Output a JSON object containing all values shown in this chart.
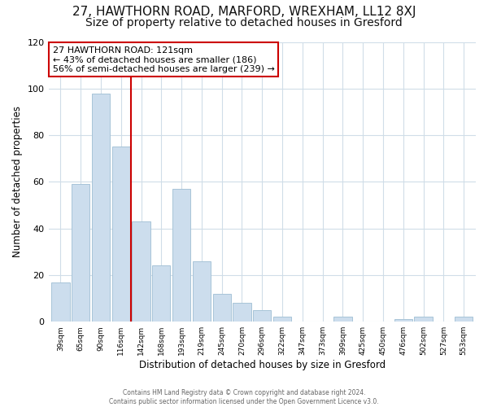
{
  "title": "27, HAWTHORN ROAD, MARFORD, WREXHAM, LL12 8XJ",
  "subtitle": "Size of property relative to detached houses in Gresford",
  "xlabel": "Distribution of detached houses by size in Gresford",
  "ylabel": "Number of detached properties",
  "categories": [
    "39sqm",
    "65sqm",
    "90sqm",
    "116sqm",
    "142sqm",
    "168sqm",
    "193sqm",
    "219sqm",
    "245sqm",
    "270sqm",
    "296sqm",
    "322sqm",
    "347sqm",
    "373sqm",
    "399sqm",
    "425sqm",
    "450sqm",
    "476sqm",
    "502sqm",
    "527sqm",
    "553sqm"
  ],
  "values": [
    17,
    59,
    98,
    75,
    43,
    24,
    57,
    26,
    12,
    8,
    5,
    2,
    0,
    0,
    2,
    0,
    0,
    1,
    2,
    0,
    2
  ],
  "bar_color": "#ccdded",
  "bar_edge_color": "#a8c4d8",
  "vline_x_index": 3.5,
  "vline_color": "#cc0000",
  "annotation_title": "27 HAWTHORN ROAD: 121sqm",
  "annotation_line1": "← 43% of detached houses are smaller (186)",
  "annotation_line2": "56% of semi-detached houses are larger (239) →",
  "annotation_box_color": "#ffffff",
  "annotation_box_edge": "#cc0000",
  "ylim": [
    0,
    120
  ],
  "yticks": [
    0,
    20,
    40,
    60,
    80,
    100,
    120
  ],
  "footer_line1": "Contains HM Land Registry data © Crown copyright and database right 2024.",
  "footer_line2": "Contains public sector information licensed under the Open Government Licence v3.0.",
  "bg_color": "#ffffff",
  "plot_bg_color": "#ffffff",
  "grid_color": "#d0dde8",
  "title_fontsize": 11,
  "subtitle_fontsize": 10
}
